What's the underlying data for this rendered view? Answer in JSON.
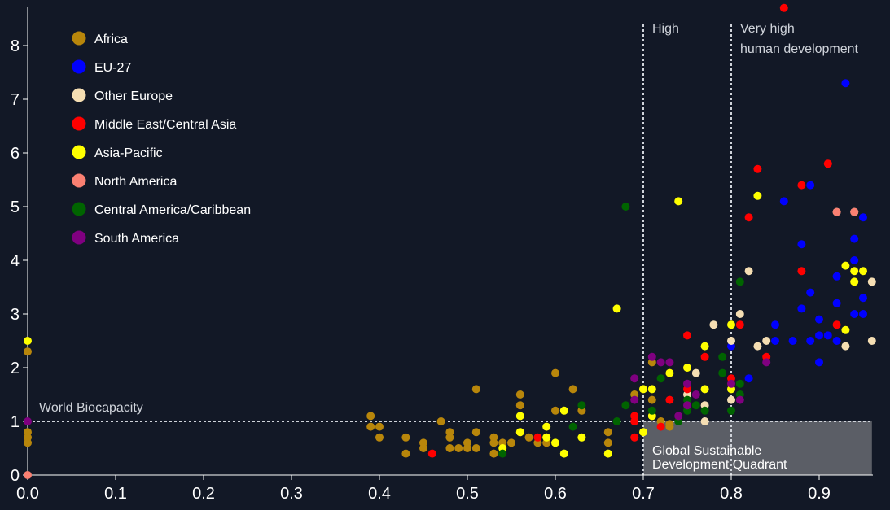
{
  "chart_data": {
    "type": "scatter",
    "title": "",
    "xlabel": "",
    "ylabel": "",
    "xlim": [
      0,
      0.96
    ],
    "ylim": [
      0,
      8.7
    ],
    "x_ticks": [
      "0.0",
      "0.1",
      "0.2",
      "0.3",
      "0.4",
      "0.5",
      "0.6",
      "0.7",
      "0.8",
      "0.9"
    ],
    "y_ticks": [
      "0",
      "1",
      "2",
      "3",
      "4",
      "5",
      "6",
      "7",
      "8"
    ],
    "legend_position": "top-left",
    "annotations": {
      "world_biocapacity": {
        "label": "World Biocapacity",
        "y": 1
      },
      "high": {
        "label": "High",
        "x": 0.7
      },
      "very_high": {
        "label_line1": "Very high",
        "label_line2": "human development",
        "x": 0.8
      },
      "quadrant": {
        "label_line1": "Global Sustainable",
        "label_line2": "Development Quadrant",
        "x_range": [
          0.7,
          0.96
        ],
        "y_range": [
          0,
          1
        ]
      }
    },
    "series": [
      {
        "name": "Africa",
        "color": "#b8860b",
        "points": [
          [
            0.0,
            2.3
          ],
          [
            0.0,
            0.8
          ],
          [
            0.0,
            0.7
          ],
          [
            0.0,
            0.6
          ],
          [
            0.39,
            1.1
          ],
          [
            0.39,
            0.9
          ],
          [
            0.4,
            0.9
          ],
          [
            0.4,
            0.7
          ],
          [
            0.43,
            0.7
          ],
          [
            0.43,
            0.4
          ],
          [
            0.45,
            0.6
          ],
          [
            0.45,
            0.5
          ],
          [
            0.47,
            1.0
          ],
          [
            0.48,
            0.8
          ],
          [
            0.48,
            0.7
          ],
          [
            0.48,
            0.5
          ],
          [
            0.49,
            0.5
          ],
          [
            0.5,
            0.6
          ],
          [
            0.5,
            0.5
          ],
          [
            0.51,
            1.6
          ],
          [
            0.51,
            0.8
          ],
          [
            0.51,
            0.5
          ],
          [
            0.53,
            0.7
          ],
          [
            0.53,
            0.6
          ],
          [
            0.53,
            0.4
          ],
          [
            0.54,
            0.6
          ],
          [
            0.55,
            0.6
          ],
          [
            0.56,
            1.5
          ],
          [
            0.56,
            1.3
          ],
          [
            0.56,
            0.8
          ],
          [
            0.57,
            0.7
          ],
          [
            0.58,
            0.6
          ],
          [
            0.59,
            0.7
          ],
          [
            0.59,
            0.6
          ],
          [
            0.6,
            1.9
          ],
          [
            0.6,
            1.2
          ],
          [
            0.62,
            1.6
          ],
          [
            0.63,
            1.2
          ],
          [
            0.66,
            0.8
          ],
          [
            0.66,
            0.6
          ],
          [
            0.69,
            1.5
          ],
          [
            0.71,
            2.1
          ],
          [
            0.71,
            1.4
          ],
          [
            0.72,
            1.0
          ],
          [
            0.73,
            0.95
          ],
          [
            0.73,
            0.9
          ]
        ]
      },
      {
        "name": "EU-27",
        "color": "#0000ff",
        "points": [
          [
            0.8,
            2.4
          ],
          [
            0.82,
            1.8
          ],
          [
            0.85,
            2.8
          ],
          [
            0.85,
            2.5
          ],
          [
            0.86,
            5.1
          ],
          [
            0.87,
            2.5
          ],
          [
            0.88,
            4.3
          ],
          [
            0.88,
            3.1
          ],
          [
            0.89,
            5.4
          ],
          [
            0.89,
            3.4
          ],
          [
            0.89,
            2.5
          ],
          [
            0.9,
            2.9
          ],
          [
            0.9,
            2.6
          ],
          [
            0.9,
            2.1
          ],
          [
            0.91,
            2.6
          ],
          [
            0.92,
            3.7
          ],
          [
            0.92,
            3.2
          ],
          [
            0.92,
            2.5
          ],
          [
            0.93,
            7.3
          ],
          [
            0.94,
            4.4
          ],
          [
            0.94,
            4.0
          ],
          [
            0.94,
            3.0
          ],
          [
            0.95,
            4.8
          ],
          [
            0.95,
            3.3
          ],
          [
            0.95,
            3.0
          ]
        ]
      },
      {
        "name": "Other Europe",
        "color": "#f5deb3",
        "points": [
          [
            0.75,
            1.5
          ],
          [
            0.76,
            1.9
          ],
          [
            0.77,
            1.3
          ],
          [
            0.77,
            1.0
          ],
          [
            0.78,
            2.8
          ],
          [
            0.8,
            2.5
          ],
          [
            0.8,
            1.4
          ],
          [
            0.81,
            3.0
          ],
          [
            0.82,
            3.8
          ],
          [
            0.83,
            2.4
          ],
          [
            0.84,
            2.5
          ],
          [
            0.92,
            4.9
          ],
          [
            0.93,
            2.4
          ],
          [
            0.94,
            4.9
          ],
          [
            0.96,
            3.6
          ],
          [
            0.96,
            2.5
          ]
        ]
      },
      {
        "name": "Middle East/Central Asia",
        "color": "#ff0000",
        "points": [
          [
            0.46,
            0.4
          ],
          [
            0.58,
            0.7
          ],
          [
            0.69,
            1.1
          ],
          [
            0.69,
            1.0
          ],
          [
            0.69,
            0.7
          ],
          [
            0.72,
            0.9
          ],
          [
            0.73,
            1.4
          ],
          [
            0.75,
            2.6
          ],
          [
            0.75,
            1.6
          ],
          [
            0.77,
            2.2
          ],
          [
            0.8,
            1.8
          ],
          [
            0.81,
            2.8
          ],
          [
            0.82,
            4.8
          ],
          [
            0.83,
            5.7
          ],
          [
            0.84,
            2.2
          ],
          [
            0.86,
            8.7
          ],
          [
            0.88,
            5.4
          ],
          [
            0.88,
            3.8
          ],
          [
            0.91,
            5.8
          ],
          [
            0.92,
            2.8
          ]
        ]
      },
      {
        "name": "Asia-Pacific",
        "color": "#ffff00",
        "points": [
          [
            0.0,
            2.5
          ],
          [
            0.54,
            0.5
          ],
          [
            0.56,
            1.1
          ],
          [
            0.56,
            0.8
          ],
          [
            0.59,
            0.9
          ],
          [
            0.59,
            0.7
          ],
          [
            0.6,
            0.6
          ],
          [
            0.61,
            1.2
          ],
          [
            0.61,
            0.4
          ],
          [
            0.63,
            0.7
          ],
          [
            0.66,
            0.4
          ],
          [
            0.67,
            3.1
          ],
          [
            0.7,
            1.6
          ],
          [
            0.7,
            0.8
          ],
          [
            0.71,
            1.6
          ],
          [
            0.71,
            1.1
          ],
          [
            0.73,
            1.9
          ],
          [
            0.74,
            5.1
          ],
          [
            0.75,
            2.0
          ],
          [
            0.77,
            2.4
          ],
          [
            0.77,
            1.6
          ],
          [
            0.8,
            2.8
          ],
          [
            0.8,
            1.6
          ],
          [
            0.83,
            5.2
          ],
          [
            0.93,
            3.9
          ],
          [
            0.93,
            2.7
          ],
          [
            0.94,
            3.8
          ],
          [
            0.94,
            3.6
          ],
          [
            0.95,
            3.8
          ]
        ]
      },
      {
        "name": "North America",
        "color": "#fa8072",
        "points": [
          [
            0.0,
            0.0
          ],
          [
            0.92,
            4.9
          ],
          [
            0.94,
            4.9
          ]
        ]
      },
      {
        "name": "Central America/Caribbean",
        "color": "#006400",
        "points": [
          [
            0.54,
            0.4
          ],
          [
            0.62,
            0.9
          ],
          [
            0.63,
            1.3
          ],
          [
            0.67,
            1.0
          ],
          [
            0.68,
            5.0
          ],
          [
            0.68,
            1.3
          ],
          [
            0.71,
            1.2
          ],
          [
            0.72,
            1.8
          ],
          [
            0.74,
            1.0
          ],
          [
            0.75,
            1.4
          ],
          [
            0.75,
            1.2
          ],
          [
            0.76,
            1.3
          ],
          [
            0.77,
            1.2
          ],
          [
            0.79,
            2.2
          ],
          [
            0.79,
            1.9
          ],
          [
            0.8,
            1.2
          ],
          [
            0.81,
            3.6
          ],
          [
            0.81,
            1.7
          ],
          [
            0.81,
            1.5
          ]
        ]
      },
      {
        "name": "South America",
        "color": "#800080",
        "points": [
          [
            0.0,
            1.0
          ],
          [
            0.69,
            1.8
          ],
          [
            0.69,
            1.4
          ],
          [
            0.71,
            2.2
          ],
          [
            0.72,
            2.1
          ],
          [
            0.73,
            2.1
          ],
          [
            0.74,
            1.1
          ],
          [
            0.75,
            1.7
          ],
          [
            0.75,
            1.3
          ],
          [
            0.76,
            1.5
          ],
          [
            0.8,
            1.7
          ],
          [
            0.81,
            1.4
          ],
          [
            0.84,
            2.1
          ]
        ]
      }
    ]
  }
}
